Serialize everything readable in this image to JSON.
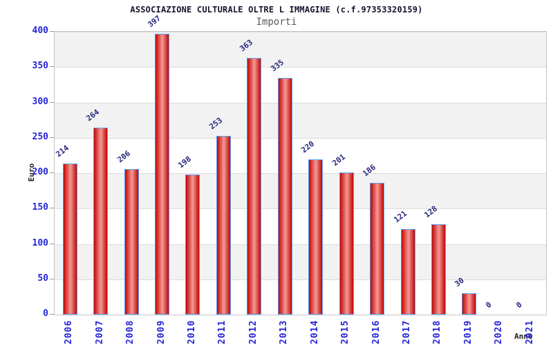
{
  "header": {
    "title": "ASSOCIAZIONE CULTURALE OLTRE L IMMAGINE (c.f.97353320159)",
    "subtitle": "Importi"
  },
  "chart_data": {
    "type": "bar",
    "title": "ASSOCIAZIONE CULTURALE OLTRE L IMMAGINE (c.f.97353320159)",
    "subtitle": "Importi",
    "categories": [
      "2006",
      "2007",
      "2008",
      "2009",
      "2010",
      "2011",
      "2012",
      "2013",
      "2014",
      "2015",
      "2016",
      "2017",
      "2018",
      "2019",
      "2020",
      "2021"
    ],
    "values": [
      214,
      264,
      206,
      397,
      198,
      253,
      363,
      335,
      220,
      201,
      186,
      121,
      128,
      30,
      0,
      0
    ],
    "xlabel": "Anno",
    "ylabel": "Euro",
    "ylim": [
      0,
      400
    ],
    "yticks": [
      0,
      50,
      100,
      150,
      200,
      250,
      300,
      350,
      400
    ],
    "grid": true,
    "legend": "none",
    "colors": {
      "bar_edge_fill": "#c40505",
      "bar_mid_fill": "#f49a93",
      "bar_border": "#57a0f2",
      "band_alt": "#f2f2f2",
      "band_main": "#ffffff",
      "gridline": "#dcdcdc",
      "tick_label": "#2424d6",
      "value_label": "#26267e",
      "title_color": "#15152e",
      "subtitle_color": "#5a5a5a"
    }
  }
}
